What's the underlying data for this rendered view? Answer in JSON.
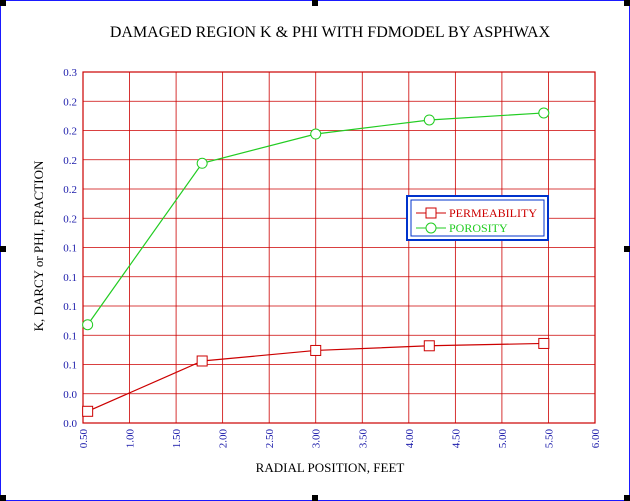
{
  "chart_data": {
    "type": "line",
    "title": "DAMAGED REGION K & PHI WITH FDMODEL BY  ASPHWAX",
    "xlabel": "RADIAL POSITION, FEET",
    "ylabel": "K, DARCY  or PHI, FRACTION",
    "xlim": [
      0.5,
      6.0
    ],
    "ylim": [
      0.0,
      0.3
    ],
    "x_ticks": [
      0.5,
      1.0,
      1.5,
      2.0,
      2.5,
      3.0,
      3.5,
      4.0,
      4.5,
      5.0,
      5.5,
      6.0
    ],
    "x_tick_labels": [
      "0.50",
      "1.00",
      "1.50",
      "2.00",
      "2.50",
      "3.00",
      "3.50",
      "4.00",
      "4.50",
      "5.00",
      "5.50",
      "6.00"
    ],
    "y_ticks": [
      0.0,
      0.025,
      0.05,
      0.075,
      0.1,
      0.125,
      0.15,
      0.175,
      0.2,
      0.225,
      0.25,
      0.275,
      0.3
    ],
    "y_tick_labels": [
      "0.0",
      "0.0",
      "0.1",
      "0.1",
      "0.1",
      "0.1",
      "0.1",
      "0.2",
      "0.2",
      "0.2",
      "0.2",
      "0.2",
      "0.3"
    ],
    "grid": true,
    "legend_position": "right",
    "series": [
      {
        "name": "PERMEABILITY",
        "color": "#cc0000",
        "marker": "square",
        "x": [
          0.55,
          1.78,
          3.0,
          4.22,
          5.45
        ],
        "y": [
          0.01,
          0.053,
          0.062,
          0.066,
          0.068
        ]
      },
      {
        "name": "POROSITY",
        "color": "#22cc22",
        "marker": "circle",
        "x": [
          0.55,
          1.78,
          3.0,
          4.22,
          5.45
        ],
        "y": [
          0.084,
          0.222,
          0.247,
          0.259,
          0.265
        ]
      }
    ],
    "colors": {
      "grid": "#cc0000",
      "axis": "#cc0000",
      "tick_label": "#1a1aaa",
      "title": "#000000",
      "legend_border": "#0033cc"
    }
  }
}
